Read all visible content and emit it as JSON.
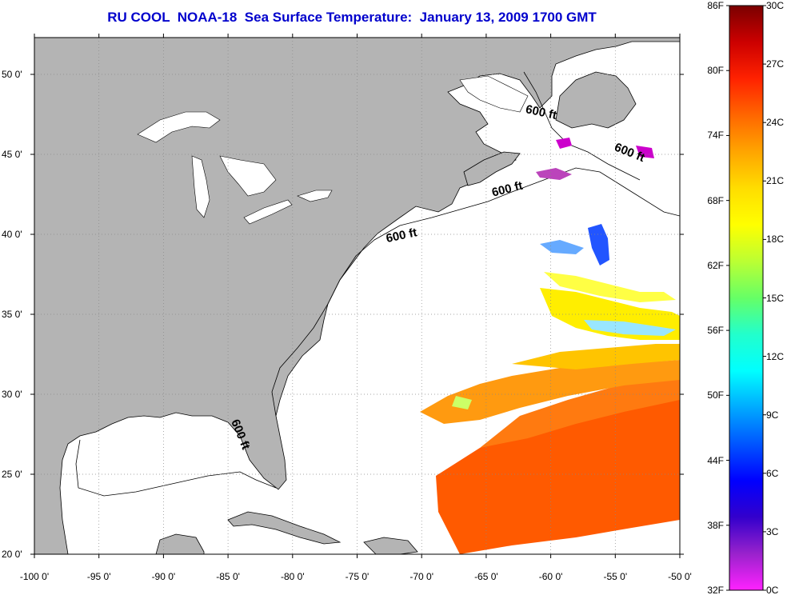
{
  "title": "RU COOL  NOAA-18  Sea Surface Temperature:  January 13, 2009 1700 GMT",
  "map": {
    "lon_range": [
      -100,
      -50
    ],
    "lat_range": [
      20,
      52.3
    ],
    "lon_ticks": [
      -100,
      -95,
      -90,
      -85,
      -80,
      -75,
      -70,
      -65,
      -60,
      -55,
      -50
    ],
    "lon_tick_labels": [
      "-100 0'",
      "-95 0'",
      "-90 0'",
      "-85 0'",
      "-80 0'",
      "-75 0'",
      "-70 0'",
      "-65 0'",
      "-60 0'",
      "-55 0'",
      "-50 0'"
    ],
    "lat_ticks": [
      20,
      25,
      30,
      35,
      40,
      45,
      50
    ],
    "lat_tick_labels": [
      "20 0'",
      "25 0'",
      "30 0'",
      "35 0'",
      "40 0'",
      "45 0'",
      "50 0'"
    ],
    "grid": "dotted",
    "land_color": "#b4b4b4",
    "water_color": "#ffffff",
    "contour_labels": [
      {
        "text": "600 ft",
        "lon": -60.8,
        "lat": 47.4,
        "rotate": 12
      },
      {
        "text": "600 ft",
        "lon": -54.0,
        "lat": 44.9,
        "rotate": 22
      },
      {
        "text": "600 ft",
        "lon": -63.3,
        "lat": 42.6,
        "rotate": -14
      },
      {
        "text": "600 ft",
        "lon": -71.5,
        "lat": 39.7,
        "rotate": -12
      },
      {
        "text": "600 ft",
        "lon": -84.3,
        "lat": 27.4,
        "rotate": 68
      }
    ]
  },
  "colorbar": {
    "fahrenheit_labels": [
      "86F",
      "80F",
      "74F",
      "68F",
      "62F",
      "56F",
      "50F",
      "44F",
      "38F",
      "32F"
    ],
    "celsius_labels": [
      "30C",
      "27C",
      "24C",
      "21C",
      "18C",
      "15C",
      "12C",
      "9C",
      "6C",
      "3C",
      "0C"
    ],
    "colors": [
      "#7a0000",
      "#cc0000",
      "#ff2200",
      "#ff6600",
      "#ffa500",
      "#ffdd00",
      "#ffff00",
      "#bbff33",
      "#66ff66",
      "#22ffcc",
      "#00ffff",
      "#00aaff",
      "#0055ff",
      "#0000ff",
      "#3300cc",
      "#9922cc",
      "#ff22ff"
    ]
  }
}
